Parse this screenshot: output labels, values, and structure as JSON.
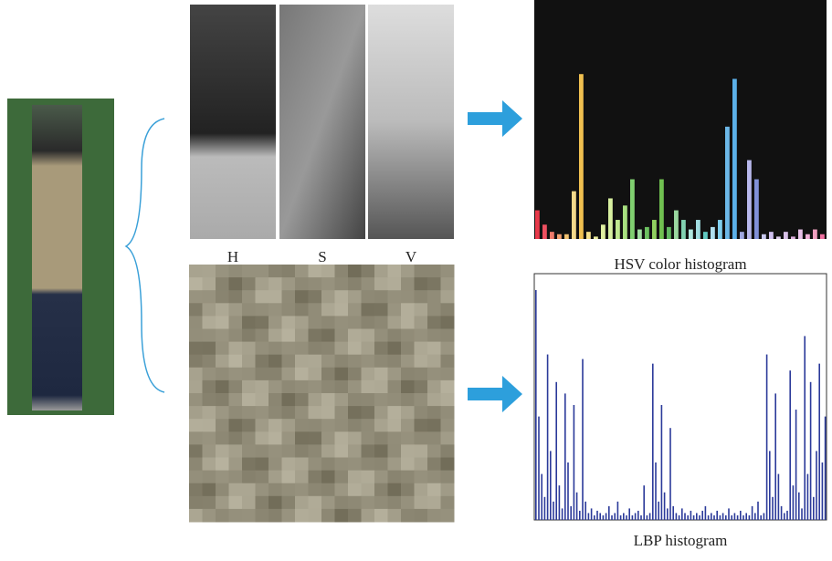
{
  "hsv_images": {
    "labels": [
      "H",
      "S",
      "V"
    ]
  },
  "hsv_histogram": {
    "title": "HSV color histogram",
    "ylim": [
      0,
      100
    ],
    "values": [
      12,
      6,
      3,
      2,
      2,
      20,
      69,
      3,
      1,
      6,
      17,
      8,
      14,
      25,
      4,
      5,
      8,
      25,
      5,
      12,
      8,
      4,
      8,
      3,
      5,
      8,
      47,
      67,
      3,
      33,
      25,
      2,
      3,
      1,
      3,
      1,
      4,
      2,
      4,
      2
    ],
    "colors": [
      "#e8394a",
      "#ee5060",
      "#f07a6a",
      "#f5a070",
      "#f0c070",
      "#f4d98a",
      "#f0c050",
      "#f5e08a",
      "#eef0a0",
      "#e0f0a0",
      "#d8f0a0",
      "#c0e890",
      "#a8e080",
      "#80d070",
      "#a0e0a0",
      "#6cc060",
      "#90d060",
      "#70c050",
      "#60b860",
      "#9ad8a0",
      "#80d0b0",
      "#b0e8e0",
      "#a0dce0",
      "#60c8c0",
      "#b0e0f0",
      "#80d0f0",
      "#6cb8e8",
      "#5cb0e8",
      "#a0a8e0",
      "#b8b8ec",
      "#8090d8",
      "#c8c8f0",
      "#d0c0f0",
      "#e0d0f0",
      "#d8c0e8",
      "#e0b0e0",
      "#e8c0e8",
      "#f0b0d8",
      "#f0a0c0",
      "#f070a0"
    ]
  },
  "lbp_histogram": {
    "title": "LBP histogram",
    "ylim": [
      0,
      100
    ],
    "color": "#2b3a9a",
    "values": [
      100,
      45,
      20,
      10,
      72,
      30,
      8,
      60,
      15,
      5,
      55,
      25,
      6,
      50,
      12,
      4,
      70,
      8,
      3,
      5,
      2,
      4,
      3,
      2,
      3,
      6,
      2,
      3,
      8,
      2,
      3,
      2,
      5,
      2,
      3,
      4,
      2,
      15,
      2,
      3,
      68,
      25,
      8,
      50,
      12,
      5,
      40,
      6,
      3,
      2,
      5,
      3,
      2,
      4,
      2,
      3,
      2,
      4,
      6,
      2,
      3,
      2,
      4,
      2,
      3,
      2,
      5,
      2,
      3,
      2,
      4,
      2,
      3,
      2,
      6,
      3,
      8,
      2,
      3,
      72,
      30,
      10,
      55,
      20,
      6,
      3,
      4,
      65,
      15,
      48,
      12,
      5,
      80,
      20,
      60,
      10,
      30,
      68,
      25,
      45
    ]
  }
}
